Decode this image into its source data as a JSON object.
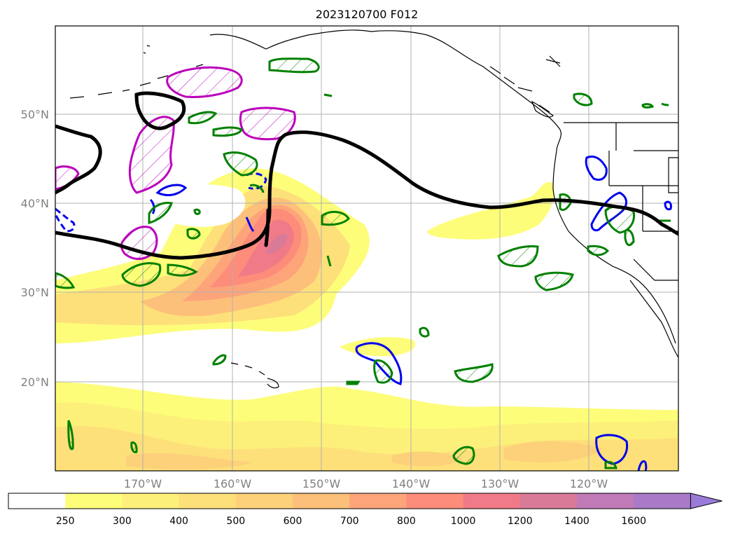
{
  "title": "2023120700 F012",
  "map": {
    "lat_labels": [
      "50°N",
      "40°N",
      "30°N",
      "20°N"
    ],
    "lon_labels": [
      "170°W",
      "160°W",
      "150°W",
      "140°W",
      "130°W",
      "120°W"
    ],
    "gridlines": true
  },
  "colorbar": {
    "levels": [
      "250",
      "300",
      "400",
      "500",
      "600",
      "700",
      "800",
      "1000",
      "1200",
      "1400",
      "1600"
    ],
    "colors": [
      "#ffffff",
      "#fdfd7a",
      "#fdf07a",
      "#fde07a",
      "#fdd07a",
      "#fdc07a",
      "#fda47a",
      "#fd8c7a",
      "#f07a88",
      "#d87a98",
      "#c07ab8",
      "#a87ac8",
      "#9a7ad8"
    ],
    "extend": "max"
  },
  "colors": {
    "jet": "#000000",
    "green": "#008000",
    "magenta": "#bb00bb",
    "blue": "#0000ee",
    "coast": "#000000",
    "grid": "#b0b0b0"
  }
}
